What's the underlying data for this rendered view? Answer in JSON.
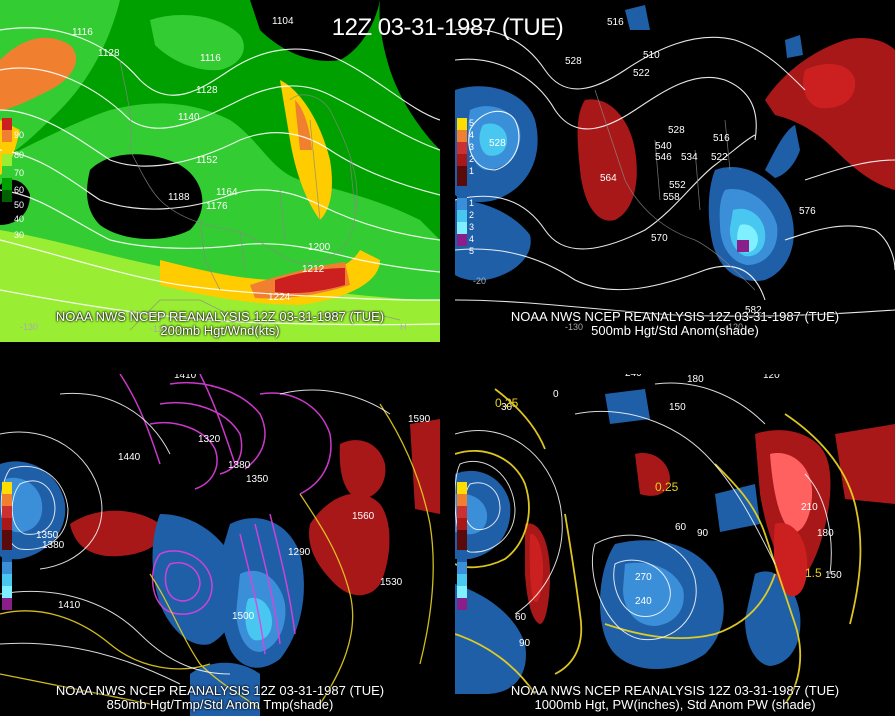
{
  "title": "12Z 03-31-1987 (TUE)",
  "panels": [
    {
      "id": "tl",
      "caption_line1": "NOAA NWS NCEP REANALYSIS 12Z 03-31-1987 (TUE)",
      "caption_line2": "200mb Hgt/Wnd(kts)",
      "legend": [
        "90",
        "80",
        "70",
        "60",
        "50",
        "40",
        "30"
      ],
      "labels": [
        "1104",
        "1116",
        "1128",
        "1116",
        "1128",
        "1140",
        "1152",
        "1164",
        "1176",
        "1188",
        "1200",
        "1212",
        "1224"
      ],
      "colors": {
        "bg": "#00a000",
        "c1": "#33cc33",
        "c2": "#99ee33",
        "c3": "#ffcc00",
        "c4": "#f08030",
        "c5": "#cc2020"
      }
    },
    {
      "id": "tr",
      "caption_line1": "NOAA NWS NCEP REANALYSIS 12Z 03-31-1987 (TUE)",
      "caption_line2": "500mb Hgt/Std Anom(shade)",
      "legend_pos": [
        "5",
        "4",
        "3",
        "2",
        "1"
      ],
      "legend_neg": [
        "1",
        "2",
        "3",
        "4",
        "5"
      ],
      "labels": [
        "516",
        "510",
        "522",
        "528",
        "528",
        "540",
        "546",
        "534",
        "522",
        "516",
        "528",
        "564",
        "552",
        "558",
        "570",
        "576",
        "582"
      ],
      "colors": {
        "neg1": "#1f5fa8",
        "neg2": "#3b8fd8",
        "neg3": "#48c8f0",
        "neg4": "#7ef0ff",
        "neg5": "#8a1f8a",
        "pos": "#a81818"
      }
    },
    {
      "id": "bl",
      "caption_line1": "NOAA NWS NCEP REANALYSIS 12Z 03-31-1987 (TUE)",
      "caption_line2": "850mb Hgt/Tmp/Std Anom Tmp(shade)",
      "labels": [
        "1410",
        "1320",
        "1440",
        "1380",
        "1350",
        "1380",
        "1290",
        "1350",
        "1500",
        "1410",
        "1560",
        "1530",
        "1590"
      ],
      "colors": {
        "pos": "#a81818",
        "neg1": "#1f5fa8",
        "neg2": "#3b8fd8",
        "neg3": "#48c8f0",
        "magenta": "#e040e0",
        "yellow": "#e8d020"
      }
    },
    {
      "id": "br",
      "caption_line1": "NOAA NWS NCEP REANALYSIS 12Z 03-31-1987 (TUE)",
      "caption_line2": "1000mb Hgt, PW(inches), Std Anom PW (shade)",
      "labels": [
        "240",
        "180",
        "120",
        "150",
        "30",
        "0",
        "60",
        "90",
        "270",
        "240",
        "210",
        "180",
        "150",
        "60",
        "90"
      ],
      "pw_labels": [
        "0.25",
        "0.25",
        "1.5"
      ],
      "colors": {
        "pos": "#cc2020",
        "pos2": "#ff6060",
        "neg1": "#1f5fa8",
        "neg2": "#3b8fd8",
        "yellow": "#e8d020"
      }
    }
  ]
}
